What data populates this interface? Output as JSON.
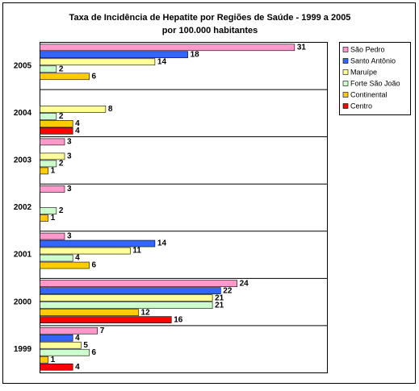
{
  "chart_data": {
    "type": "hbar",
    "title": "Taxa de Incidência de Hepatite por Regiões de Saúde - 1999 a 2005",
    "subtitle": "por 100.000 habitantes",
    "categories": [
      "2005",
      "2004",
      "2003",
      "2002",
      "2001",
      "2000",
      "1999"
    ],
    "xlim": [
      0,
      35
    ],
    "series": [
      {
        "name": "São Pedro",
        "color": "#ff99cc",
        "values": [
          31,
          null,
          3,
          3,
          3,
          24,
          7
        ]
      },
      {
        "name": "Santo Antônio",
        "color": "#3366ff",
        "values": [
          18,
          null,
          null,
          null,
          14,
          22,
          4
        ]
      },
      {
        "name": "Maruípe",
        "color": "#ffff99",
        "values": [
          14,
          8,
          3,
          null,
          11,
          21,
          5
        ]
      },
      {
        "name": "Forte São João",
        "color": "#ccffcc",
        "values": [
          2,
          2,
          2,
          2,
          4,
          21,
          6
        ]
      },
      {
        "name": "Continental",
        "color": "#ffcc00",
        "values": [
          6,
          4,
          1,
          1,
          6,
          12,
          1
        ]
      },
      {
        "name": "Centro",
        "color": "#ff0000",
        "values": [
          null,
          4,
          null,
          null,
          null,
          16,
          4
        ]
      }
    ],
    "legend": "right"
  }
}
